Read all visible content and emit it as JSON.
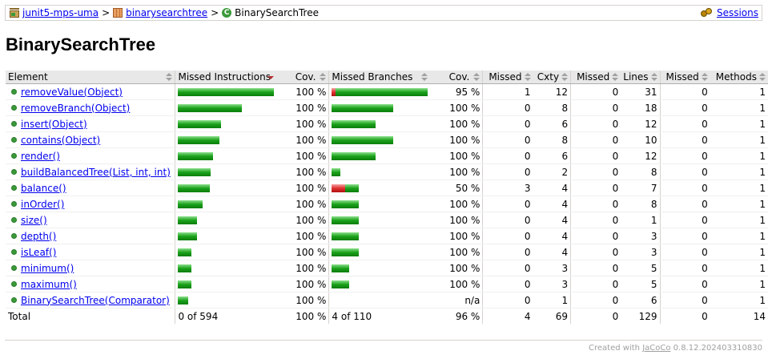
{
  "breadcrumb": {
    "report": "junit5-mps-uma",
    "package": "binarysearchtree",
    "class": "BinarySearchTree",
    "sep": ">",
    "sessions": "Sessions"
  },
  "title": "BinarySearchTree",
  "table": {
    "headers": {
      "element": "Element",
      "missed_instructions": "Missed Instructions",
      "cov1": "Cov.",
      "missed_branches": "Missed Branches",
      "cov2": "Cov.",
      "missed_cxty": "Missed",
      "cxty": "Cxty",
      "missed_lines": "Missed",
      "lines": "Lines",
      "missed_methods": "Missed",
      "methods": "Methods"
    },
    "rows": [
      {
        "name": "removeValue(Object)",
        "instr_frac": 1.0,
        "instr_cov": "100 %",
        "br_missed_frac": 0.04,
        "br_covered_frac": 0.96,
        "br_cov": "95 %",
        "mcx": "1",
        "cx": "12",
        "ml": "0",
        "ln": "31",
        "mm": "0",
        "me": "1"
      },
      {
        "name": "removeBranch(Object)",
        "instr_frac": 0.67,
        "instr_cov": "100 %",
        "br_missed_frac": 0,
        "br_covered_frac": 0.64,
        "br_cov": "100 %",
        "mcx": "0",
        "cx": "8",
        "ml": "0",
        "ln": "18",
        "mm": "0",
        "me": "1"
      },
      {
        "name": "insert(Object)",
        "instr_frac": 0.45,
        "instr_cov": "100 %",
        "br_missed_frac": 0,
        "br_covered_frac": 0.46,
        "br_cov": "100 %",
        "mcx": "0",
        "cx": "6",
        "ml": "0",
        "ln": "12",
        "mm": "0",
        "me": "1"
      },
      {
        "name": "contains(Object)",
        "instr_frac": 0.43,
        "instr_cov": "100 %",
        "br_missed_frac": 0,
        "br_covered_frac": 0.64,
        "br_cov": "100 %",
        "mcx": "0",
        "cx": "8",
        "ml": "0",
        "ln": "10",
        "mm": "0",
        "me": "1"
      },
      {
        "name": "render()",
        "instr_frac": 0.37,
        "instr_cov": "100 %",
        "br_missed_frac": 0,
        "br_covered_frac": 0.46,
        "br_cov": "100 %",
        "mcx": "0",
        "cx": "6",
        "ml": "0",
        "ln": "12",
        "mm": "0",
        "me": "1"
      },
      {
        "name": "buildBalancedTree(List, int, int)",
        "instr_frac": 0.34,
        "instr_cov": "100 %",
        "br_missed_frac": 0,
        "br_covered_frac": 0.09,
        "br_cov": "100 %",
        "mcx": "0",
        "cx": "2",
        "ml": "0",
        "ln": "8",
        "mm": "0",
        "me": "1"
      },
      {
        "name": "balance()",
        "instr_frac": 0.33,
        "instr_cov": "100 %",
        "br_missed_frac": 0.14,
        "br_covered_frac": 0.14,
        "br_cov": "50 %",
        "mcx": "3",
        "cx": "4",
        "ml": "0",
        "ln": "7",
        "mm": "0",
        "me": "1"
      },
      {
        "name": "inOrder()",
        "instr_frac": 0.26,
        "instr_cov": "100 %",
        "br_missed_frac": 0,
        "br_covered_frac": 0.28,
        "br_cov": "100 %",
        "mcx": "0",
        "cx": "4",
        "ml": "0",
        "ln": "8",
        "mm": "0",
        "me": "1"
      },
      {
        "name": "size()",
        "instr_frac": 0.2,
        "instr_cov": "100 %",
        "br_missed_frac": 0,
        "br_covered_frac": 0.28,
        "br_cov": "100 %",
        "mcx": "0",
        "cx": "4",
        "ml": "0",
        "ln": "1",
        "mm": "0",
        "me": "1"
      },
      {
        "name": "depth()",
        "instr_frac": 0.2,
        "instr_cov": "100 %",
        "br_missed_frac": 0,
        "br_covered_frac": 0.28,
        "br_cov": "100 %",
        "mcx": "0",
        "cx": "4",
        "ml": "0",
        "ln": "3",
        "mm": "0",
        "me": "1"
      },
      {
        "name": "isLeaf()",
        "instr_frac": 0.14,
        "instr_cov": "100 %",
        "br_missed_frac": 0,
        "br_covered_frac": 0.28,
        "br_cov": "100 %",
        "mcx": "0",
        "cx": "4",
        "ml": "0",
        "ln": "3",
        "mm": "0",
        "me": "1"
      },
      {
        "name": "minimum()",
        "instr_frac": 0.14,
        "instr_cov": "100 %",
        "br_missed_frac": 0,
        "br_covered_frac": 0.18,
        "br_cov": "100 %",
        "mcx": "0",
        "cx": "3",
        "ml": "0",
        "ln": "5",
        "mm": "0",
        "me": "1"
      },
      {
        "name": "maximum()",
        "instr_frac": 0.14,
        "instr_cov": "100 %",
        "br_missed_frac": 0,
        "br_covered_frac": 0.18,
        "br_cov": "100 %",
        "mcx": "0",
        "cx": "3",
        "ml": "0",
        "ln": "5",
        "mm": "0",
        "me": "1"
      },
      {
        "name": "BinarySearchTree(Comparator)",
        "instr_frac": 0.11,
        "instr_cov": "100 %",
        "br_missed_frac": 0,
        "br_covered_frac": 0,
        "br_cov": "n/a",
        "mcx": "0",
        "cx": "1",
        "ml": "0",
        "ln": "6",
        "mm": "0",
        "me": "1"
      }
    ],
    "total": {
      "label": "Total",
      "instr": "0 of 594",
      "instr_cov": "100 %",
      "br": "4 of 110",
      "br_cov": "96 %",
      "mcx": "4",
      "cx": "69",
      "ml": "0",
      "ln": "129",
      "mm": "0",
      "me": "14"
    }
  },
  "footer": {
    "prefix": "Created with",
    "link": "JaCoCo",
    "version": "0.8.12.202403310830"
  },
  "colors": {
    "covered": "#1aa11a",
    "missed": "#e03030",
    "link": "#0000ee"
  }
}
